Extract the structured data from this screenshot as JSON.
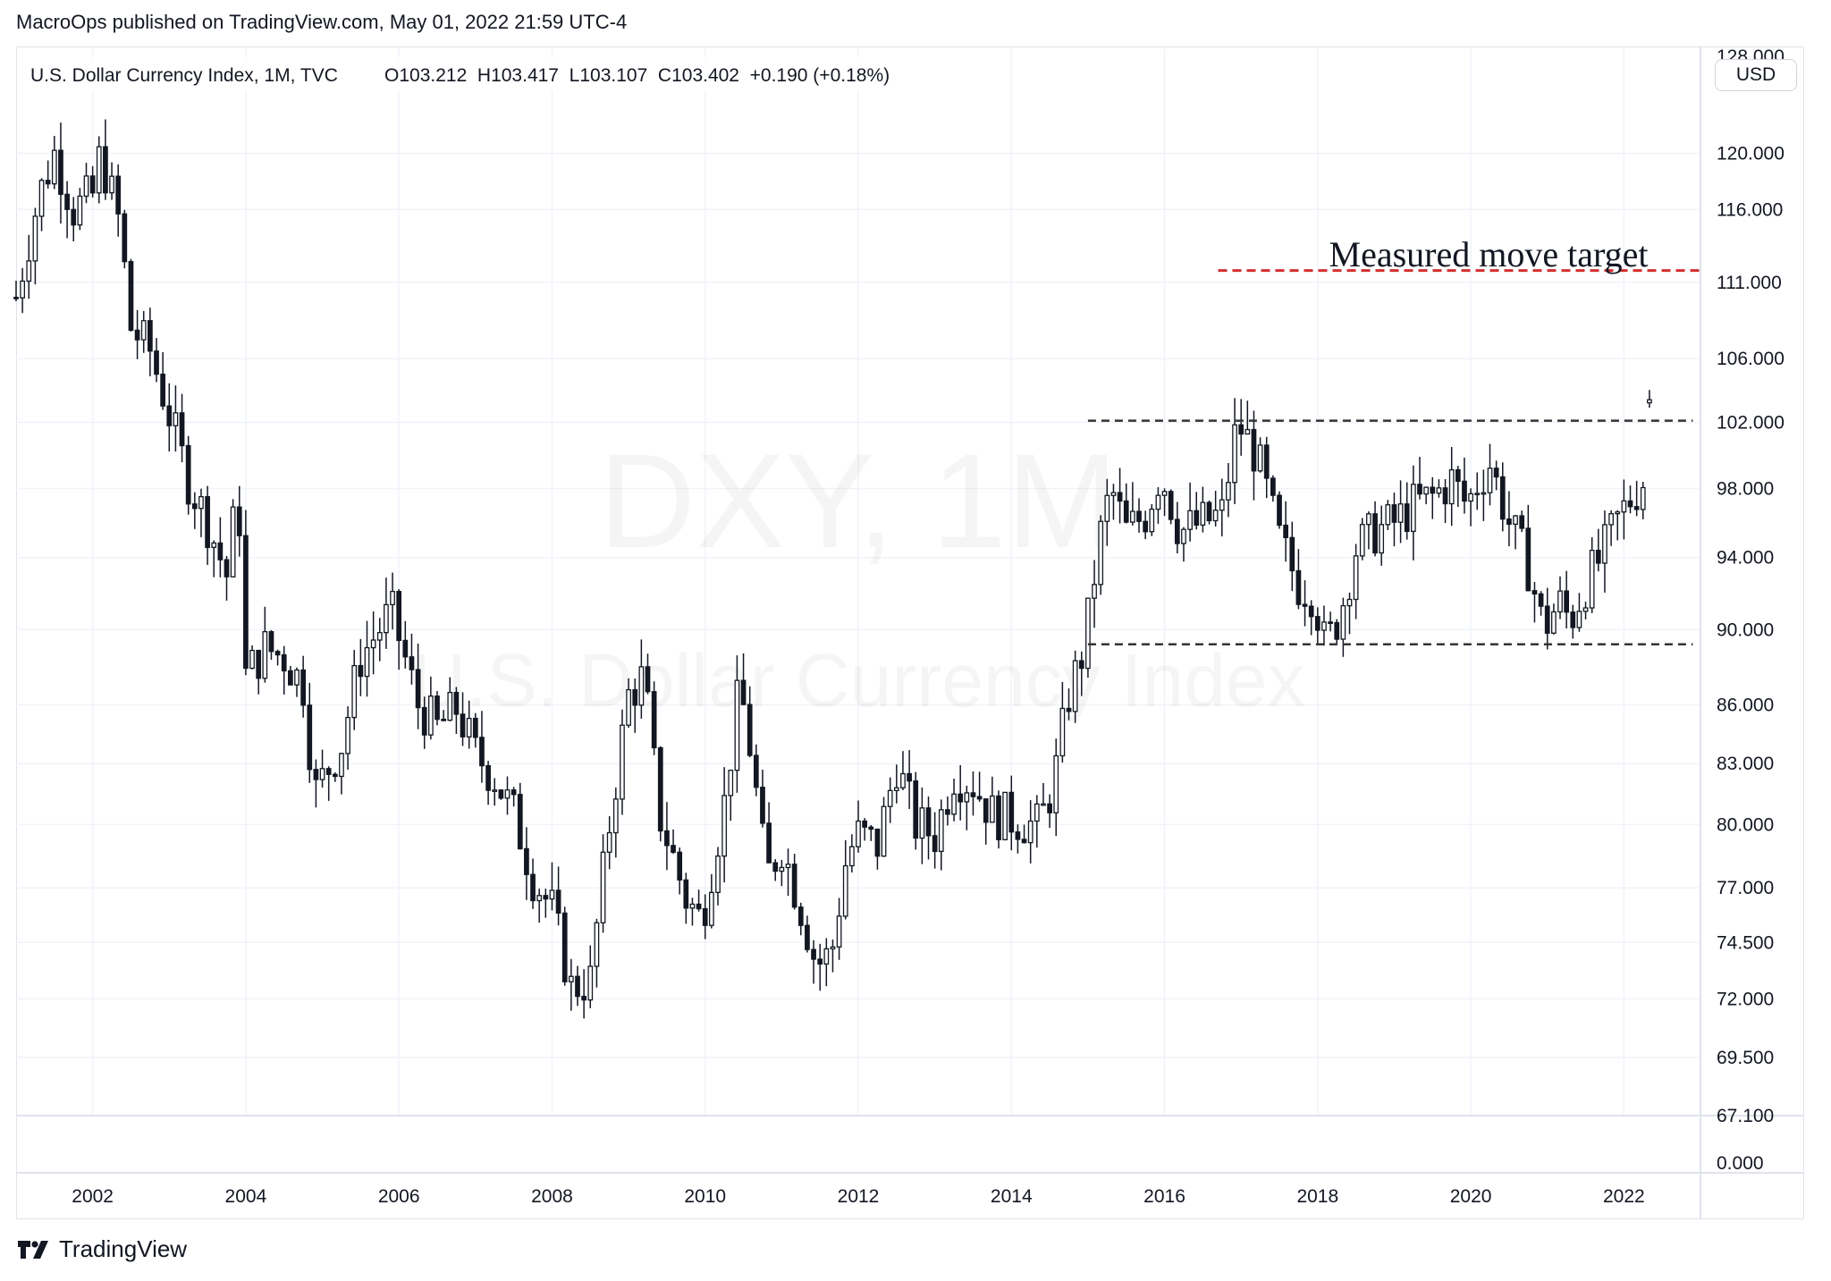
{
  "header": {
    "published_text": "MacroOps published on TradingView.com, May 01, 2022 21:59 UTC-4"
  },
  "legend": {
    "symbol_text": "U.S. Dollar Currency Index, 1M, TVC",
    "ohlc_text": "O103.212  H103.417  L103.107  C103.402  +0.190 (+0.18%)"
  },
  "watermark": {
    "line1": "DXY, 1M",
    "line2": "U.S. Dollar Currency Index"
  },
  "currency_button": "USD",
  "footer": {
    "brand": "TradingView"
  },
  "colors": {
    "candle": "#131722",
    "target_line": "#d32f2f",
    "range_line": "#333333",
    "grid": "#f0f3fa",
    "watermark": "rgba(19,23,34,0.05)"
  },
  "chart_data": {
    "type": "candlestick",
    "symbol": "DXY",
    "interval": "1M",
    "y_scale": "log",
    "ylim": [
      67.1,
      128.0
    ],
    "y_ticks": [
      120.0,
      116.0,
      111.0,
      106.0,
      102.0,
      98.0,
      94.0,
      90.0,
      86.0,
      83.0,
      80.0,
      77.0,
      74.5,
      72.0,
      69.5,
      67.1
    ],
    "y_tick_labels": [
      "120.000",
      "116.000",
      "111.000",
      "106.000",
      "102.000",
      "98.000",
      "94.000",
      "90.000",
      "86.000",
      "83.000",
      "80.000",
      "77.000",
      "74.500",
      "72.000",
      "69.500",
      "67.100"
    ],
    "y_top_partial_label": "128.000",
    "volume_pane_label": "0.000",
    "xlim": [
      2001.0,
      2023.0
    ],
    "x_ticks": [
      2002,
      2004,
      2006,
      2008,
      2010,
      2012,
      2014,
      2016,
      2018,
      2020,
      2022
    ],
    "x_tick_labels": [
      "2002",
      "2004",
      "2006",
      "2008",
      "2010",
      "2012",
      "2014",
      "2016",
      "2018",
      "2020",
      "2022"
    ],
    "price_anchors": [
      [
        2001.0,
        110.0
      ],
      [
        2001.3,
        117.0
      ],
      [
        2001.5,
        120.0
      ],
      [
        2001.75,
        116.0
      ],
      [
        2002.0,
        117.0
      ],
      [
        2002.1,
        120.0
      ],
      [
        2002.35,
        115.0
      ],
      [
        2002.5,
        108.0
      ],
      [
        2002.75,
        106.5
      ],
      [
        2003.0,
        102.5
      ],
      [
        2003.25,
        98.5
      ],
      [
        2003.5,
        96.0
      ],
      [
        2003.75,
        93.0
      ],
      [
        2003.9,
        98.0
      ],
      [
        2004.0,
        87.5
      ],
      [
        2004.25,
        89.0
      ],
      [
        2004.5,
        88.5
      ],
      [
        2004.75,
        87.0
      ],
      [
        2004.9,
        81.5
      ],
      [
        2005.25,
        84.0
      ],
      [
        2005.5,
        88.5
      ],
      [
        2005.9,
        91.0
      ],
      [
        2006.25,
        86.0
      ],
      [
        2006.5,
        84.8
      ],
      [
        2006.75,
        85.8
      ],
      [
        2007.0,
        83.5
      ],
      [
        2007.25,
        82.3
      ],
      [
        2007.5,
        80.5
      ],
      [
        2007.75,
        77.5
      ],
      [
        2008.0,
        76.0
      ],
      [
        2008.25,
        72.5
      ],
      [
        2008.5,
        72.8
      ],
      [
        2008.75,
        80.0
      ],
      [
        2009.0,
        86.5
      ],
      [
        2009.2,
        87.5
      ],
      [
        2009.4,
        80.5
      ],
      [
        2009.75,
        76.5
      ],
      [
        2009.95,
        75.5
      ],
      [
        2010.25,
        81.0
      ],
      [
        2010.45,
        87.0
      ],
      [
        2010.6,
        83.5
      ],
      [
        2010.8,
        77.5
      ],
      [
        2011.0,
        79.0
      ],
      [
        2011.3,
        75.5
      ],
      [
        2011.45,
        73.5
      ],
      [
        2011.65,
        74.0
      ],
      [
        2011.85,
        78.5
      ],
      [
        2012.0,
        79.5
      ],
      [
        2012.25,
        79.0
      ],
      [
        2012.5,
        83.0
      ],
      [
        2012.75,
        80.0
      ],
      [
        2013.0,
        79.5
      ],
      [
        2013.25,
        82.5
      ],
      [
        2013.5,
        82.0
      ],
      [
        2013.75,
        80.5
      ],
      [
        2014.0,
        80.3
      ],
      [
        2014.35,
        79.9
      ],
      [
        2014.55,
        82.0
      ],
      [
        2014.75,
        86.5
      ],
      [
        2014.95,
        89.0
      ],
      [
        2015.15,
        95.0
      ],
      [
        2015.3,
        98.0
      ],
      [
        2015.5,
        95.5
      ],
      [
        2015.75,
        96.5
      ],
      [
        2015.95,
        99.0
      ],
      [
        2016.2,
        95.5
      ],
      [
        2016.5,
        96.0
      ],
      [
        2016.75,
        96.5
      ],
      [
        2016.95,
        102.0
      ],
      [
        2017.2,
        100.0
      ],
      [
        2017.5,
        95.0
      ],
      [
        2017.75,
        92.5
      ],
      [
        2017.95,
        92.0
      ],
      [
        2018.1,
        89.0
      ],
      [
        2018.3,
        91.0
      ],
      [
        2018.5,
        94.5
      ],
      [
        2018.75,
        95.5
      ],
      [
        2019.0,
        96.0
      ],
      [
        2019.25,
        97.0
      ],
      [
        2019.5,
        97.5
      ],
      [
        2019.75,
        98.5
      ],
      [
        2019.95,
        97.0
      ],
      [
        2020.1,
        98.5
      ],
      [
        2020.25,
        99.5
      ],
      [
        2020.5,
        96.0
      ],
      [
        2020.75,
        93.5
      ],
      [
        2020.95,
        90.0
      ],
      [
        2021.15,
        91.5
      ],
      [
        2021.3,
        90.5
      ],
      [
        2021.5,
        92.5
      ],
      [
        2021.7,
        94.0
      ],
      [
        2021.9,
        96.0
      ],
      [
        2022.1,
        97.5
      ],
      [
        2022.25,
        98.5
      ],
      [
        2022.33,
        103.4
      ]
    ],
    "annotations": [
      {
        "label": "Measured move target",
        "price": 111.8,
        "x_start": 2016.7,
        "x_end": 2023.0,
        "style": "dashed-red"
      },
      {
        "label": "",
        "price": 102.1,
        "x_start": 2015.0,
        "x_end": 2022.9,
        "style": "dashed-black"
      },
      {
        "label": "",
        "price": 89.2,
        "x_start": 2015.0,
        "x_end": 2022.9,
        "style": "dashed-black"
      }
    ],
    "last_close": 103.402,
    "open": 103.212,
    "high": 103.417,
    "low": 103.107,
    "change": 0.19,
    "change_pct": 0.18
  }
}
